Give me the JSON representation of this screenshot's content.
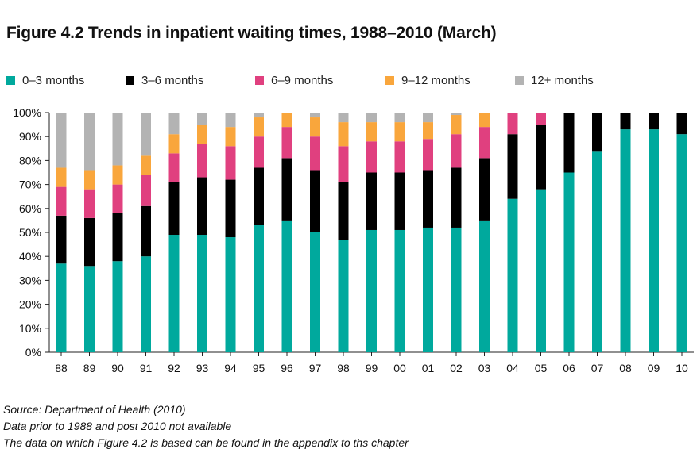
{
  "chart_data": {
    "type": "bar",
    "stacked": true,
    "title": "Figure 4.2 Trends in inpatient waiting times, 1988–2010 (March)",
    "categories": [
      "88",
      "89",
      "90",
      "91",
      "92",
      "93",
      "94",
      "95",
      "96",
      "97",
      "98",
      "99",
      "00",
      "01",
      "02",
      "03",
      "04",
      "05",
      "06",
      "07",
      "08",
      "09",
      "10"
    ],
    "y_ticks": [
      "0%",
      "10%",
      "20%",
      "30%",
      "40%",
      "50%",
      "60%",
      "70%",
      "80%",
      "90%",
      "100%"
    ],
    "ylim": [
      0,
      100
    ],
    "legend_position": "top",
    "series": [
      {
        "name": "0–3 months",
        "color": "#00a99d",
        "values": [
          37,
          36,
          38,
          40,
          49,
          49,
          48,
          53,
          55,
          50,
          47,
          51,
          51,
          52,
          52,
          55,
          64,
          68,
          75,
          84,
          93,
          93,
          91
        ]
      },
      {
        "name": "3–6 months",
        "color": "#000000",
        "values": [
          20,
          20,
          20,
          21,
          22,
          24,
          24,
          24,
          26,
          26,
          24,
          24,
          24,
          24,
          25,
          26,
          27,
          27,
          25,
          16,
          7,
          7,
          9
        ]
      },
      {
        "name": "6–9 months",
        "color": "#e0407f",
        "values": [
          12,
          12,
          12,
          13,
          12,
          14,
          14,
          13,
          13,
          14,
          15,
          13,
          13,
          13,
          14,
          13,
          9,
          5,
          0,
          0,
          0,
          0,
          0
        ]
      },
      {
        "name": "9–12 months",
        "color": "#f9a63c",
        "values": [
          8,
          8,
          8,
          8,
          8,
          8,
          8,
          8,
          6,
          8,
          10,
          8,
          8,
          7,
          8,
          6,
          0,
          0,
          0,
          0,
          0,
          0,
          0
        ]
      },
      {
        "name": "12+ months",
        "color": "#b3b3b3",
        "values": [
          23,
          24,
          22,
          18,
          9,
          5,
          6,
          2,
          0,
          2,
          4,
          4,
          4,
          4,
          1,
          0,
          0,
          0,
          0,
          0,
          0,
          0,
          0
        ]
      }
    ]
  },
  "notes": [
    "Source: Department of Health (2010)",
    "Data prior to 1988 and post 2010 not available",
    "The data on which Figure 4.2 is based can be found in the appendix to ths chapter"
  ]
}
